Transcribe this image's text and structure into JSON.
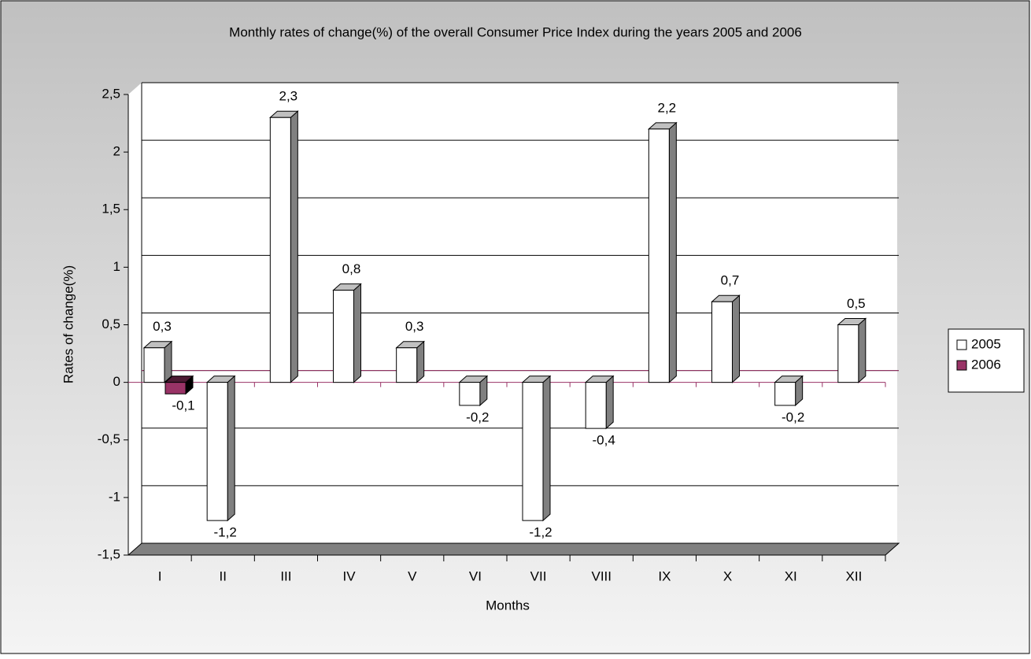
{
  "chart_data": {
    "type": "bar3d",
    "title": "Monthly rates of change(%) of the overall Consumer Price Index during the years 2005 and 2006",
    "x_label": "Months",
    "y_label": "Rates of change(%)",
    "categories": [
      "I",
      "II",
      "III",
      "IV",
      "V",
      "VI",
      "VII",
      "VIII",
      "IX",
      "X",
      "XI",
      "XII"
    ],
    "series": [
      {
        "name": "2005",
        "color": "#ffffff",
        "values": [
          0.3,
          -1.2,
          2.3,
          0.8,
          0.3,
          -0.2,
          -1.2,
          -0.4,
          2.2,
          0.7,
          -0.2,
          0.5
        ],
        "value_labels": [
          "0,3",
          "-1,2",
          "2,3",
          "0,8",
          "0,3",
          "-0,2",
          "-1,2",
          "-0,4",
          "2,2",
          "0,7",
          "-0,2",
          "0,5"
        ]
      },
      {
        "name": "2006",
        "color": "#993366",
        "values": [
          -0.1,
          null,
          null,
          null,
          null,
          null,
          null,
          null,
          null,
          null,
          null,
          null
        ],
        "value_labels": [
          "-0,1",
          null,
          null,
          null,
          null,
          null,
          null,
          null,
          null,
          null,
          null,
          null
        ]
      }
    ],
    "ylim": [
      -1.5,
      2.5
    ],
    "yticks": [
      {
        "value": -1.5,
        "label": "-1,5"
      },
      -1,
      {
        "value": -0.5,
        "label": "-0,5"
      },
      0,
      {
        "value": 0.5,
        "label": "0,5"
      },
      1,
      {
        "value": 1.5,
        "label": "1,5"
      },
      2,
      {
        "value": 2.5,
        "label": "2,5"
      }
    ],
    "grid": true,
    "legend": "right"
  }
}
